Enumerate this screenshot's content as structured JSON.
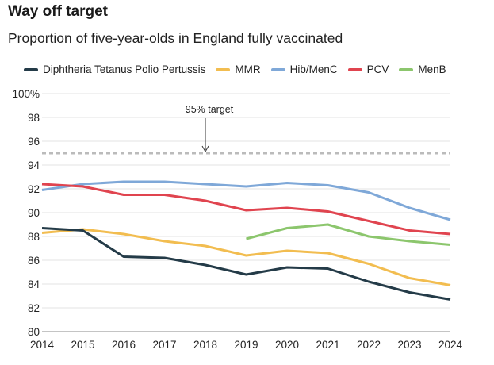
{
  "title": "Way off target",
  "subtitle": "Proportion of five-year-olds in England fully vaccinated",
  "chart_data": {
    "type": "line",
    "x": [
      2014,
      2015,
      2016,
      2017,
      2018,
      2019,
      2020,
      2021,
      2022,
      2023,
      2024
    ],
    "xticks": [
      "2014",
      "2015",
      "2016",
      "2017",
      "2018",
      "2019",
      "2020",
      "2021",
      "2022",
      "2023",
      "2024"
    ],
    "yticks": [
      "80",
      "82",
      "84",
      "86",
      "88",
      "90",
      "92",
      "94",
      "96",
      "98",
      "100%"
    ],
    "ylim": [
      80,
      100
    ],
    "grid": true,
    "legend_position": "top",
    "series": [
      {
        "name": "Diphtheria Tetanus Polio Pertussis",
        "color": "#243b48",
        "values": [
          88.7,
          88.5,
          86.3,
          86.2,
          85.6,
          84.8,
          85.4,
          85.3,
          84.2,
          83.3,
          82.7
        ]
      },
      {
        "name": "MMR",
        "color": "#f2bd50",
        "values": [
          88.3,
          88.6,
          88.2,
          87.6,
          87.2,
          86.4,
          86.8,
          86.6,
          85.7,
          84.5,
          83.9
        ]
      },
      {
        "name": "Hib/MenC",
        "color": "#7fa8d8",
        "values": [
          91.9,
          92.4,
          92.6,
          92.6,
          92.4,
          92.2,
          92.5,
          92.3,
          91.7,
          90.4,
          89.4
        ]
      },
      {
        "name": "PCV",
        "color": "#e0444f",
        "values": [
          92.4,
          92.2,
          91.5,
          91.5,
          91.0,
          90.2,
          90.4,
          90.1,
          89.3,
          88.5,
          88.2
        ]
      },
      {
        "name": "MenB",
        "color": "#8cc66d",
        "values": [
          null,
          null,
          null,
          null,
          null,
          87.8,
          88.7,
          89.0,
          88.0,
          87.6,
          87.3
        ]
      }
    ],
    "reference_line": {
      "value": 95,
      "label": "95% target",
      "color": "#bbbbbb"
    }
  }
}
